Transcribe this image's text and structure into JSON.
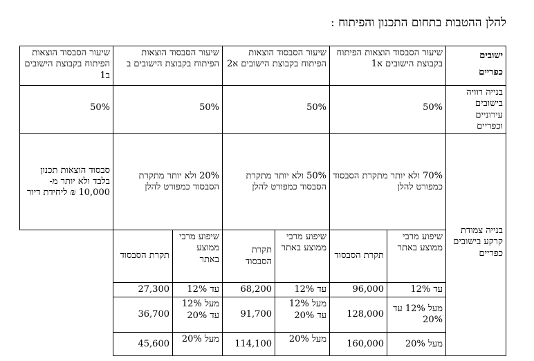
{
  "title": "להלן ההטבות בתחום התכנון והפיתוח :",
  "header": {
    "settlements_line1": "ישובים",
    "settlements_line2": "כפריים",
    "col_a1": "שיעור הסבסוד הוצאות הפיתוח בקבוצת הישובים א1",
    "col_a2": "שיעור הסבסוד הוצאות הפיתוח בקבוצת הישובים א2",
    "col_b": "שיעור הסבסוד הוצאות הפיתוח בקבוצת הישובים ב",
    "col_b1": "שיעור הסבסוד הוצאות הפיתוח בקבוצת הישובים ב1"
  },
  "row_wide": {
    "label": "בנייה רוויה בישובים עירוניים וכפריים",
    "a1": "50%",
    "a2": "50%",
    "b": "50%",
    "b1": "50%"
  },
  "row_ground": {
    "label": "בנייה צמודת קרקע בישובים כפריים",
    "a1": "70% ולא יותר מתקרת הסבסוד כמפורט להלן",
    "a2": "50% ולא יותר מתקרת הסבסוד כמפורט להלן",
    "b": "20% ולא יותר מתקרת הסבסוד כמפורט להלן",
    "b1": "סבסוד הוצאות תכנון בלבד ולא יותר מ- 10,000 ₪ ליחידת דיור"
  },
  "sub_header": {
    "improvement": "שיפוע מרבי ממוצע באתר",
    "ceiling": "תקרת הסבסוד"
  },
  "slope_rows": [
    {
      "a1_slope": "עד 12%",
      "a1_ceiling": "96,000",
      "a2_slope": "עד 12%",
      "a2_ceiling": "68,200",
      "b_slope": "עד 12%",
      "b_ceiling": "27,300"
    },
    {
      "a1_slope": "מעל 12% עד 20%",
      "a1_ceiling": "128,000",
      "a2_slope": "מעל 12% עד 20%",
      "a2_ceiling": "91,700",
      "b_slope": "מעל 12% עד 20%",
      "b_ceiling": "36,700"
    },
    {
      "a1_slope": "מעל 20%",
      "a1_ceiling": "160,000",
      "a2_slope": "מעל 20%",
      "a2_ceiling": "114,100",
      "b_slope": "מעל 20%",
      "b_ceiling": "45,600"
    }
  ]
}
